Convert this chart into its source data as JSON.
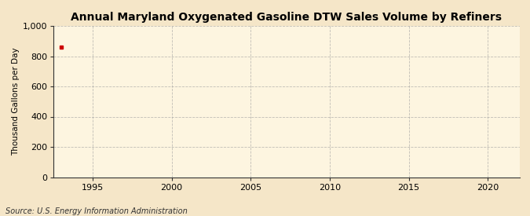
{
  "title": "Annual Maryland Oxygenated Gasoline DTW Sales Volume by Refiners",
  "ylabel": "Thousand Gallons per Day",
  "source_text": "Source: U.S. Energy Information Administration",
  "background_color": "#f5e6c8",
  "plot_background_color": "#fdf5e0",
  "data_x": [
    1993
  ],
  "data_y": [
    858
  ],
  "data_color": "#cc0000",
  "data_marker": "s",
  "data_marker_size": 3,
  "xlim": [
    1992.5,
    2022
  ],
  "ylim": [
    0,
    1000
  ],
  "xticks": [
    1995,
    2000,
    2005,
    2010,
    2015,
    2020
  ],
  "yticks": [
    0,
    200,
    400,
    600,
    800,
    1000
  ],
  "ytick_labels": [
    "0",
    "200",
    "400",
    "600",
    "800",
    "1,000"
  ],
  "grid_color": "#999999",
  "grid_style": "--",
  "grid_alpha": 0.6,
  "title_fontsize": 10,
  "axis_label_fontsize": 7.5,
  "tick_fontsize": 8,
  "source_fontsize": 7
}
